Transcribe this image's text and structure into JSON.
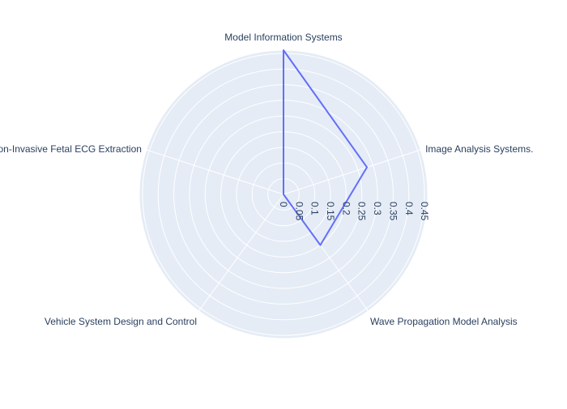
{
  "chart_data": {
    "type": "radar",
    "categories": [
      "Model Information Systems",
      "Image Analysis Systems.",
      "Wave Propagation Model Analysis",
      "Vehicle System Design and Control",
      "Non-Invasive Fetal ECG Extraction"
    ],
    "series": [
      {
        "values": [
          0.46,
          0.28,
          0.2,
          0.0,
          0.0
        ]
      }
    ],
    "radial_range": [
      0,
      0.46
    ],
    "radial_ticks": [
      "0",
      "0.05",
      "0.1",
      "0.15",
      "0.2",
      "0.25",
      "0.3",
      "0.35",
      "0.4",
      "0.45"
    ],
    "radial_tick_values": [
      0,
      0.05,
      0.1,
      0.15,
      0.2,
      0.25,
      0.3,
      0.35,
      0.4,
      0.45
    ],
    "grid": true,
    "legend": "none",
    "colors": {
      "polar_background": "#e5ecf6",
      "gridline": "#ffffff",
      "series_line": "#636efa",
      "text": "#2a3f5f"
    }
  }
}
